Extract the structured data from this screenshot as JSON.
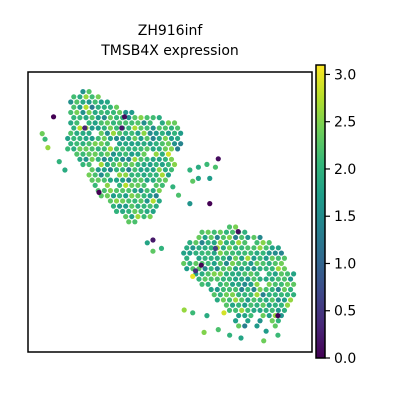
{
  "chart_data": {
    "type": "scatter",
    "title": "ZH916inf",
    "subtitle": "TMSB4X expression",
    "xlabel": "",
    "ylabel": "",
    "xlim": [
      0,
      1
    ],
    "ylim": [
      0,
      1
    ],
    "grid": false,
    "frame_ticks": false,
    "colormap": "viridis",
    "colormap_stops": [
      "#440154",
      "#482878",
      "#3e4989",
      "#31688e",
      "#26828e",
      "#1f9e89",
      "#35b779",
      "#6ece58",
      "#b5de2b",
      "#fde725"
    ],
    "colorbar": {
      "min": 0.0,
      "max": 3.1,
      "ticks": [
        0.0,
        0.5,
        1.0,
        1.5,
        2.0,
        2.5,
        3.0
      ],
      "tick_labels": [
        "0.0",
        "0.5",
        "1.0",
        "1.5",
        "2.0",
        "2.5",
        "3.0"
      ],
      "placement": "right"
    },
    "regions": [
      {
        "polygon": [
          [
            0.14,
            0.91
          ],
          [
            0.21,
            0.94
          ],
          [
            0.35,
            0.86
          ],
          [
            0.52,
            0.83
          ],
          [
            0.55,
            0.75
          ],
          [
            0.5,
            0.63
          ],
          [
            0.46,
            0.53
          ],
          [
            0.43,
            0.48
          ],
          [
            0.36,
            0.45
          ],
          [
            0.3,
            0.51
          ],
          [
            0.24,
            0.57
          ],
          [
            0.18,
            0.66
          ],
          [
            0.13,
            0.74
          ],
          [
            0.14,
            0.8
          ]
        ],
        "value_mean": 2.05,
        "value_spread": 0.5
      },
      {
        "polygon": [
          [
            0.55,
            0.4
          ],
          [
            0.63,
            0.44
          ],
          [
            0.74,
            0.45
          ],
          [
            0.85,
            0.4
          ],
          [
            0.94,
            0.32
          ],
          [
            0.95,
            0.24
          ],
          [
            0.91,
            0.12
          ],
          [
            0.85,
            0.07
          ],
          [
            0.74,
            0.09
          ],
          [
            0.66,
            0.19
          ],
          [
            0.6,
            0.25
          ],
          [
            0.54,
            0.31
          ]
        ],
        "value_mean": 2.05,
        "value_spread": 0.5
      }
    ],
    "extra_points": [
      {
        "x": 0.57,
        "y": 0.65,
        "v": 2.0
      },
      {
        "x": 0.6,
        "y": 0.66,
        "v": 1.9
      },
      {
        "x": 0.63,
        "y": 0.67,
        "v": 2.1
      },
      {
        "x": 0.6,
        "y": 0.62,
        "v": 1.8
      },
      {
        "x": 0.66,
        "y": 0.66,
        "v": 2.2
      },
      {
        "x": 0.58,
        "y": 0.61,
        "v": 2.3
      },
      {
        "x": 0.64,
        "y": 0.62,
        "v": 1.7
      },
      {
        "x": 0.05,
        "y": 0.78,
        "v": 2.4
      },
      {
        "x": 0.06,
        "y": 0.76,
        "v": 2.1
      },
      {
        "x": 0.07,
        "y": 0.73,
        "v": 2.6
      },
      {
        "x": 0.11,
        "y": 0.68,
        "v": 2.0
      },
      {
        "x": 0.13,
        "y": 0.65,
        "v": 1.9
      },
      {
        "x": 0.53,
        "y": 0.56,
        "v": 2.2
      },
      {
        "x": 0.51,
        "y": 0.59,
        "v": 2.0
      },
      {
        "x": 0.57,
        "y": 0.53,
        "v": 1.6
      },
      {
        "x": 0.44,
        "y": 0.36,
        "v": 2.3
      },
      {
        "x": 0.42,
        "y": 0.39,
        "v": 1.8
      },
      {
        "x": 0.47,
        "y": 0.37,
        "v": 2.0
      },
      {
        "x": 0.55,
        "y": 0.15,
        "v": 2.6
      },
      {
        "x": 0.58,
        "y": 0.14,
        "v": 2.1
      },
      {
        "x": 0.63,
        "y": 0.13,
        "v": 1.9
      },
      {
        "x": 0.67,
        "y": 0.08,
        "v": 2.2
      },
      {
        "x": 0.71,
        "y": 0.06,
        "v": 2.0
      },
      {
        "x": 0.75,
        "y": 0.05,
        "v": 1.8
      },
      {
        "x": 0.83,
        "y": 0.04,
        "v": 2.4
      },
      {
        "x": 0.88,
        "y": 0.06,
        "v": 2.1
      },
      {
        "x": 0.62,
        "y": 0.07,
        "v": 2.5
      }
    ],
    "outlier_points": [
      {
        "x": 0.09,
        "y": 0.84,
        "v": 0.0
      },
      {
        "x": 0.34,
        "y": 0.84,
        "v": 0.1
      },
      {
        "x": 0.33,
        "y": 0.8,
        "v": 0.2
      },
      {
        "x": 0.25,
        "y": 0.57,
        "v": 0.0
      },
      {
        "x": 0.67,
        "y": 0.69,
        "v": 0.1
      },
      {
        "x": 0.64,
        "y": 0.53,
        "v": 0.0
      },
      {
        "x": 0.74,
        "y": 0.43,
        "v": 0.1
      },
      {
        "x": 0.61,
        "y": 0.31,
        "v": 0.0
      },
      {
        "x": 0.59,
        "y": 0.29,
        "v": 0.4
      },
      {
        "x": 0.88,
        "y": 0.13,
        "v": 0.0
      },
      {
        "x": 0.66,
        "y": 0.37,
        "v": 0.6
      },
      {
        "x": 0.2,
        "y": 0.8,
        "v": 0.3
      },
      {
        "x": 0.44,
        "y": 0.4,
        "v": 0.2
      },
      {
        "x": 0.69,
        "y": 0.14,
        "v": 2.9
      },
      {
        "x": 0.58,
        "y": 0.27,
        "v": 3.0
      }
    ]
  }
}
